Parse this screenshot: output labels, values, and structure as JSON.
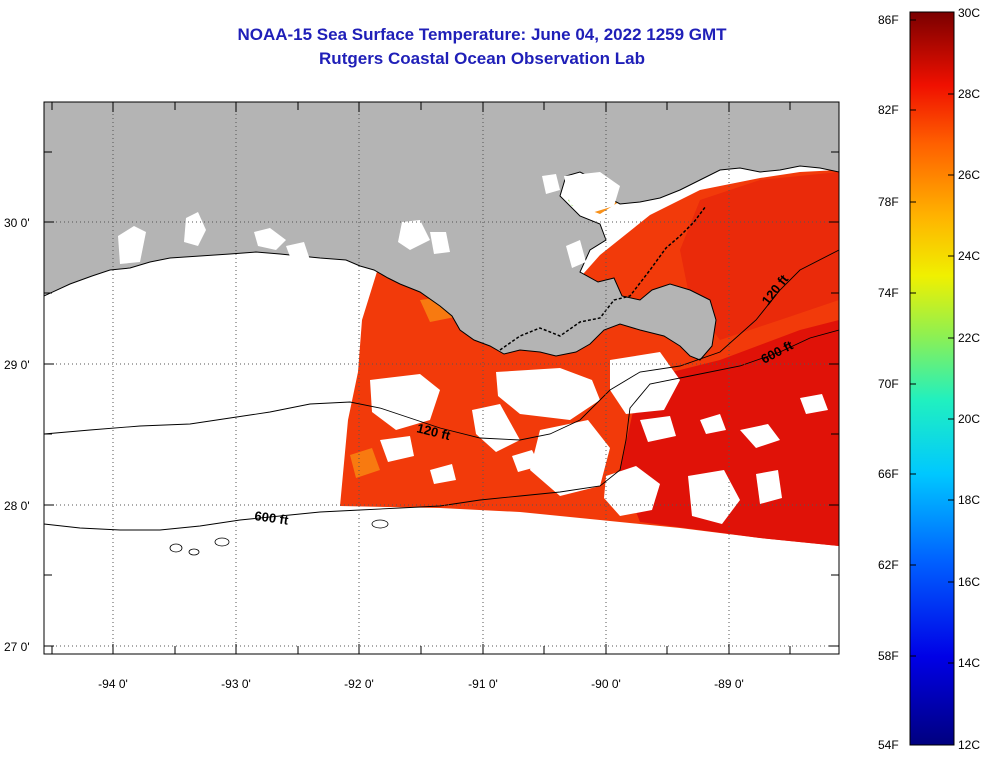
{
  "title": {
    "line1": "NOAA-15 Sea Surface Temperature:  June 04, 2022 1259 GMT",
    "line2": "Rutgers Coastal Ocean Observation Lab"
  },
  "map": {
    "lon_range": [
      -94.55,
      -88.0
    ],
    "lat_range": [
      26.95,
      30.85
    ],
    "lon_ticks": [
      {
        "value": -94,
        "label": "-94 0'"
      },
      {
        "value": -93,
        "label": "-93 0'"
      },
      {
        "value": -92,
        "label": "-92 0'"
      },
      {
        "value": -91,
        "label": "-91 0'"
      },
      {
        "value": -90,
        "label": "-90 0'"
      },
      {
        "value": -89,
        "label": "-89 0'"
      }
    ],
    "lat_ticks": [
      {
        "value": 30,
        "label": "30 0'"
      },
      {
        "value": 29,
        "label": "29 0'"
      },
      {
        "value": 28,
        "label": "28 0'"
      },
      {
        "value": 27,
        "label": "27 0'"
      }
    ],
    "contour_labels": [
      {
        "name": "contour-label-120ft-east",
        "text": "120 ft"
      },
      {
        "name": "contour-label-600ft-east",
        "text": "600 ft"
      },
      {
        "name": "contour-label-120ft-center",
        "text": "120 ft"
      },
      {
        "name": "contour-label-600ft-west",
        "text": "600 ft"
      }
    ],
    "colors": {
      "land": "#b4b4b4",
      "sst_warm": "#f23a0a",
      "sst_hot": "#e01208",
      "sst_cool": "#f87a10"
    }
  },
  "colorbar": {
    "fahrenheit": [
      "86F",
      "82F",
      "78F",
      "74F",
      "70F",
      "66F",
      "62F",
      "58F",
      "54F"
    ],
    "celsius": [
      "30C",
      "28C",
      "26C",
      "24C",
      "22C",
      "20C",
      "18C",
      "16C",
      "14C",
      "12C"
    ],
    "range_f": [
      54,
      86
    ],
    "range_c": [
      12,
      30
    ]
  }
}
